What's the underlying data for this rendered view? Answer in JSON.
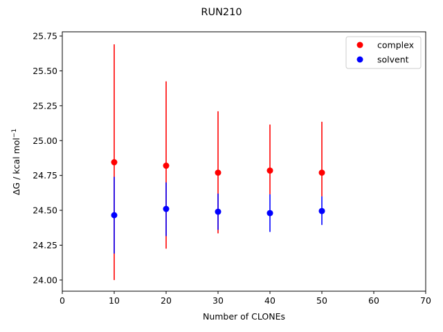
{
  "chart_data": {
    "type": "scatter",
    "title": "RUN210",
    "xlabel": "Number of CLONEs",
    "ylabel_main": "ΔG / kcal mol",
    "ylabel_sup": "−1",
    "xlim": [
      0,
      70
    ],
    "ylim": [
      23.92,
      25.78
    ],
    "xticks": [
      0,
      10,
      20,
      30,
      40,
      50,
      60,
      70
    ],
    "xtick_labels": [
      "0",
      "10",
      "20",
      "30",
      "40",
      "50",
      "60",
      "70"
    ],
    "yticks": [
      24.0,
      24.25,
      24.5,
      24.75,
      25.0,
      25.25,
      25.5,
      25.75
    ],
    "ytick_labels": [
      "24.00",
      "24.25",
      "24.50",
      "24.75",
      "25.00",
      "25.25",
      "25.50",
      "25.75"
    ],
    "grid": false,
    "legend_position": "top-right",
    "series": [
      {
        "name": "complex",
        "color": "#ff0000",
        "x": [
          10,
          20,
          30,
          40,
          50
        ],
        "y": [
          24.845,
          24.82,
          24.77,
          24.785,
          24.77
        ],
        "yerr_low": [
          24.0,
          24.225,
          24.335,
          24.615,
          24.6
        ],
        "yerr_high": [
          25.69,
          25.425,
          25.21,
          25.115,
          25.135
        ]
      },
      {
        "name": "solvent",
        "color": "#0000ff",
        "x": [
          10,
          20,
          30,
          40,
          50
        ],
        "y": [
          24.465,
          24.51,
          24.49,
          24.48,
          24.495
        ],
        "yerr_low": [
          24.19,
          24.315,
          24.36,
          24.345,
          24.395
        ],
        "yerr_high": [
          24.74,
          24.7,
          24.62,
          24.615,
          24.6
        ]
      }
    ]
  }
}
